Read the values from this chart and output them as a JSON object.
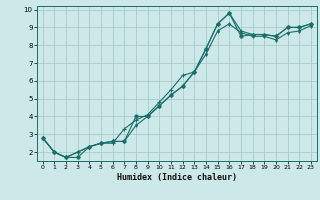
{
  "title": "",
  "xlabel": "Humidex (Indice chaleur)",
  "bg_color": "#cce8e8",
  "grid_color": "#aacccc",
  "line_color": "#1a6e6a",
  "xlim_min": -0.5,
  "xlim_max": 23.5,
  "ylim_min": 1.5,
  "ylim_max": 10.2,
  "xticks": [
    0,
    1,
    2,
    3,
    4,
    5,
    6,
    7,
    8,
    9,
    10,
    11,
    12,
    13,
    14,
    15,
    16,
    17,
    18,
    19,
    20,
    21,
    22,
    23
  ],
  "yticks": [
    2,
    3,
    4,
    5,
    6,
    7,
    8,
    9,
    10
  ],
  "line1_x": [
    0,
    1,
    2,
    3,
    4,
    5,
    6,
    7,
    8,
    9,
    10,
    11,
    12,
    13,
    14,
    15,
    16,
    17,
    18,
    19,
    20,
    21,
    22,
    23
  ],
  "line1_y": [
    2.8,
    2.0,
    1.7,
    1.7,
    2.3,
    2.5,
    2.6,
    2.6,
    4.0,
    4.0,
    4.6,
    5.2,
    5.7,
    6.5,
    7.8,
    9.2,
    9.8,
    8.5,
    8.6,
    8.6,
    8.5,
    9.0,
    9.0,
    9.2
  ],
  "line2_x": [
    0,
    1,
    2,
    3,
    4,
    5,
    6,
    7,
    8,
    9,
    10,
    11,
    12,
    13,
    14,
    15,
    16,
    17,
    18,
    19,
    20,
    21,
    22,
    23
  ],
  "line2_y": [
    2.8,
    2.0,
    1.7,
    2.0,
    2.3,
    2.5,
    2.5,
    3.3,
    3.8,
    4.1,
    4.8,
    5.5,
    6.3,
    6.5,
    7.8,
    9.2,
    9.8,
    8.8,
    8.6,
    8.6,
    8.5,
    9.0,
    9.0,
    9.2
  ],
  "line3_x": [
    0,
    1,
    2,
    3,
    4,
    5,
    6,
    7,
    8,
    9,
    10,
    11,
    12,
    13,
    14,
    15,
    16,
    17,
    18,
    19,
    20,
    21,
    22,
    23
  ],
  "line3_y": [
    2.8,
    2.0,
    1.7,
    2.0,
    2.3,
    2.5,
    2.6,
    2.6,
    3.5,
    4.0,
    4.6,
    5.2,
    5.7,
    6.5,
    7.5,
    8.8,
    9.2,
    8.7,
    8.5,
    8.5,
    8.3,
    8.7,
    8.8,
    9.1
  ]
}
